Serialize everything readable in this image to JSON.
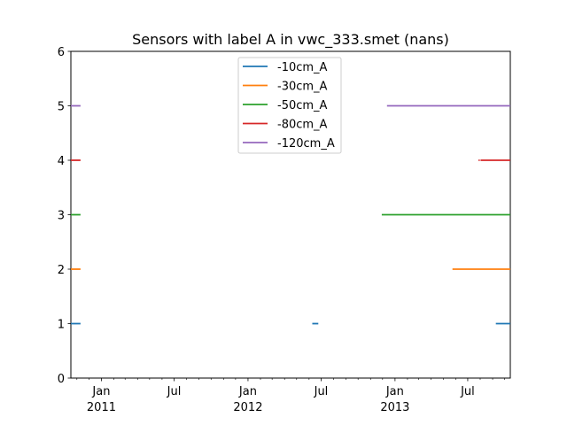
{
  "chart_data": {
    "type": "line",
    "title": "Sensors with label A in vwc_333.smet (nans)",
    "xlabel": "",
    "ylabel": "",
    "xlim": [
      "2010-10-17",
      "2013-10-15"
    ],
    "ylim": [
      0,
      6
    ],
    "yticks": [
      0,
      1,
      2,
      3,
      4,
      5,
      6
    ],
    "xticks_major": [
      {
        "date": "2011-01-01",
        "label": "Jan",
        "sublabel": "2011"
      },
      {
        "date": "2011-07-01",
        "label": "Jul",
        "sublabel": ""
      },
      {
        "date": "2012-01-01",
        "label": "Jan",
        "sublabel": "2012"
      },
      {
        "date": "2012-07-01",
        "label": "Jul",
        "sublabel": ""
      },
      {
        "date": "2013-01-01",
        "label": "Jan",
        "sublabel": "2013"
      },
      {
        "date": "2013-07-01",
        "label": "Jul",
        "sublabel": ""
      }
    ],
    "xticks_minor": [
      "2010-11-01",
      "2010-12-01",
      "2011-02-01",
      "2011-03-01",
      "2011-04-01",
      "2011-05-01",
      "2011-06-01",
      "2011-08-01",
      "2011-09-01",
      "2011-10-01",
      "2011-11-01",
      "2011-12-01",
      "2012-02-01",
      "2012-03-01",
      "2012-04-01",
      "2012-05-01",
      "2012-06-01",
      "2012-08-01",
      "2012-09-01",
      "2012-10-01",
      "2012-11-01",
      "2012-12-01",
      "2013-02-01",
      "2013-03-01",
      "2013-04-01",
      "2013-05-01",
      "2013-06-01",
      "2013-08-01",
      "2013-09-01",
      "2013-10-01"
    ],
    "grid": false,
    "legend_position": "top-center",
    "series": [
      {
        "name": "-10cm_A",
        "color": "#1f77b4",
        "y": 1,
        "segments": [
          [
            "2010-10-17",
            "2010-11-10"
          ],
          [
            "2012-06-09",
            "2012-06-24"
          ],
          [
            "2013-09-09",
            "2013-10-15"
          ]
        ]
      },
      {
        "name": "-30cm_A",
        "color": "#ff7f0e",
        "y": 2,
        "segments": [
          [
            "2010-10-17",
            "2010-11-10"
          ],
          [
            "2013-05-24",
            "2013-10-15"
          ]
        ]
      },
      {
        "name": "-50cm_A",
        "color": "#2ca02c",
        "y": 3,
        "segments": [
          [
            "2010-10-17",
            "2010-11-10"
          ],
          [
            "2012-11-29",
            "2013-10-15"
          ]
        ]
      },
      {
        "name": "-80cm_A",
        "color": "#d62728",
        "y": 4,
        "segments": [
          [
            "2010-10-17",
            "2010-11-10"
          ],
          [
            "2013-07-28",
            "2013-07-31"
          ],
          [
            "2013-08-02",
            "2013-10-15"
          ]
        ]
      },
      {
        "name": "-120cm_A",
        "color": "#9467bd",
        "y": 5,
        "segments": [
          [
            "2010-10-17",
            "2010-11-10"
          ],
          [
            "2012-12-12",
            "2013-10-15"
          ]
        ]
      }
    ]
  }
}
